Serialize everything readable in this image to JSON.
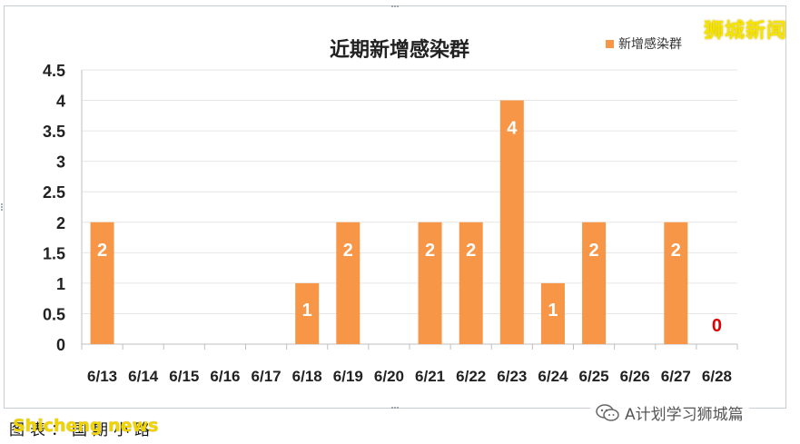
{
  "watermark_top": "狮城新闻",
  "wechat_label": "A计划学习狮城篇",
  "caption": "图表：国期小路",
  "caption_watermark": "Shicheng news",
  "colors": {
    "bar": "#f79646",
    "label": "#ffffff",
    "zero_label": "#e00000",
    "axis": "#bfbfbf",
    "grid": "#e6e6e6"
  },
  "chart_data": {
    "type": "bar",
    "title": "近期新增感染群",
    "legend": {
      "position": "top-right",
      "label": "新增感染群"
    },
    "categories": [
      "6/13",
      "6/14",
      "6/15",
      "6/16",
      "6/17",
      "6/18",
      "6/19",
      "6/20",
      "6/21",
      "6/22",
      "6/23",
      "6/24",
      "6/25",
      "6/26",
      "6/27",
      "6/28"
    ],
    "series": [
      {
        "name": "新增感染群",
        "values": [
          2,
          0,
          0,
          0,
          0,
          1,
          2,
          0,
          2,
          2,
          4,
          1,
          2,
          0,
          2,
          0
        ]
      }
    ],
    "data_labels": [
      "2",
      "",
      "",
      "",
      "",
      "1",
      "2",
      "",
      "2",
      "2",
      "4",
      "1",
      "2",
      "",
      "2",
      "0"
    ],
    "yticks": [
      "0",
      "0.5",
      "1",
      "1.5",
      "2",
      "2.5",
      "3",
      "3.5",
      "4",
      "4.5"
    ],
    "ylim": [
      0,
      4.5
    ],
    "grid": true
  }
}
